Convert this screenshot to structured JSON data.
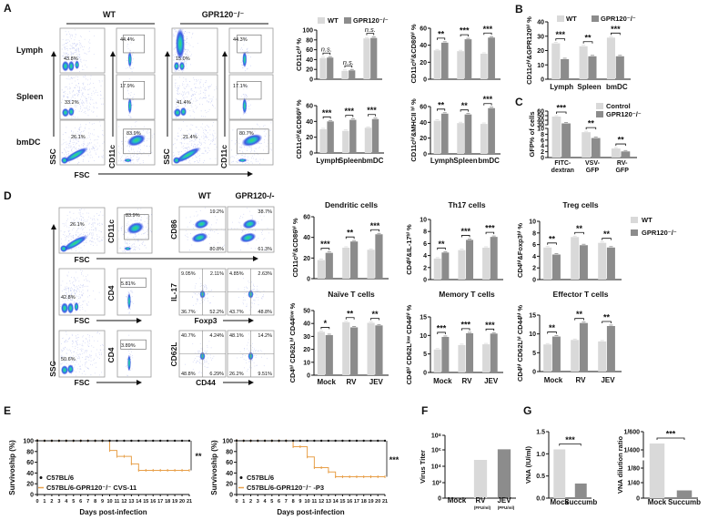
{
  "panels": {
    "A": "A",
    "B": "B",
    "C": "C",
    "D": "D",
    "E": "E",
    "F": "F",
    "G": "G"
  },
  "colors": {
    "wt": "#d9d9d9",
    "ko": "#8c8c8c",
    "survival_wt": "#111111",
    "survival_ko": "#e8a04a",
    "flow_dense": "#3ddc6a",
    "flow_mid": "#1f3fe0"
  },
  "legends": {
    "A": [
      "WT",
      "GPR120⁻/⁻"
    ],
    "B": [
      "WT",
      "GPR120⁻/⁻"
    ],
    "C": [
      "Control",
      "GPR120⁻/⁻"
    ],
    "D": [
      "WT",
      "GPR120⁻/⁻"
    ]
  },
  "flow_A": {
    "header_wt": "WT",
    "header_ko": "GPR120⁻/⁻",
    "rows": [
      "Lymph",
      "Spleen",
      "bmDC"
    ],
    "ssc": "SSC",
    "fsc": "FSC",
    "cd11c": "CD11c",
    "wt_ssc_gates": [
      "43.8%",
      "33.2%",
      "26.1%"
    ],
    "wt_cd11c_gates": [
      "44.4%",
      "17.9%",
      "83.9%"
    ],
    "ko_ssc_gates": [
      "15.0%",
      "41.4%",
      "21.4%"
    ],
    "ko_cd11c_gates": [
      "44.3%",
      "17.1%",
      "80.7%"
    ]
  },
  "flow_D": {
    "header_wt": "WT",
    "header_ko": "GPR120-/-",
    "ssc": "SSC",
    "fsc": "FSC",
    "cd11c": "CD11c",
    "cd86": "CD86",
    "cd4": "CD4",
    "il17": "IL-17",
    "foxp3": "Foxp3",
    "cd62l": "CD62L",
    "cd44": "CD44",
    "row1": {
      "ssc_gate": "26.1%",
      "cd11c_gate": "83.9%",
      "wt": [
        "19.2%",
        "80.8%"
      ],
      "ko": [
        "38.7%",
        "61.3%"
      ]
    },
    "row2": {
      "ssc_gate": "42.8%",
      "cd4_gate": "5.81%",
      "wt": [
        "9.05%",
        "2.11%",
        "36.7%",
        "52.2%"
      ],
      "ko": [
        "4.85%",
        "2.63%",
        "43.7%",
        "48.8%"
      ]
    },
    "row3": {
      "ssc_gate": "50.6%",
      "cd4_gate": "3.89%",
      "wt": [
        "40.7%",
        "4.24%",
        "48.8%",
        "6.29%"
      ],
      "ko": [
        "48.1%",
        "14.2%",
        "26.2%",
        "9.51%"
      ]
    }
  },
  "chart_data": [
    {
      "id": "A-cd11c",
      "type": "bar",
      "ylabel": "CD11cʰⁱ %",
      "ylim": [
        0,
        100
      ],
      "yticks": [
        0,
        20,
        40,
        60,
        80,
        100
      ],
      "ytick_labels": [
        "0",
        "20",
        "40",
        "60",
        "80",
        "100"
      ],
      "series": [
        {
          "name": "WT",
          "values": [
            43,
            17,
            83
          ]
        },
        {
          "name": "GPR120⁻/⁻",
          "values": [
            44,
            18,
            84
          ]
        }
      ],
      "significance": [
        "n.s.",
        "n.s.",
        "n.s."
      ]
    },
    {
      "id": "A-cd80",
      "type": "bar",
      "ylabel": "CD11cʰⁱ&CD80ʰⁱ %",
      "ylim": [
        0,
        60
      ],
      "yticks": [
        0,
        20,
        40,
        60
      ],
      "ytick_labels": [
        "0",
        "20",
        "40",
        "60"
      ],
      "series": [
        {
          "name": "WT",
          "values": [
            34,
            33,
            30
          ]
        },
        {
          "name": "GPR120⁻/⁻",
          "values": [
            43,
            47,
            49
          ]
        }
      ],
      "significance": [
        "**",
        "***",
        "***"
      ]
    },
    {
      "id": "A-cd86",
      "type": "bar",
      "ylabel": "CD11cʰⁱ&CD86ʰⁱ %",
      "ylim": [
        0,
        60
      ],
      "yticks": [
        0,
        20,
        40,
        60
      ],
      "ytick_labels": [
        "0",
        "20",
        "40",
        "60"
      ],
      "categories": [
        "Lymph",
        "Spleen",
        "bmDC"
      ],
      "series": [
        {
          "name": "WT",
          "values": [
            30,
            28,
            32
          ]
        },
        {
          "name": "GPR120⁻/⁻",
          "values": [
            40,
            42,
            43
          ]
        }
      ],
      "significance": [
        "***",
        "***",
        "***"
      ]
    },
    {
      "id": "A-mhcii",
      "type": "bar",
      "ylabel": "CD11cʰⁱ&MHCII ʰⁱ %",
      "ylim": [
        0,
        60
      ],
      "yticks": [
        0,
        20,
        40,
        60
      ],
      "ytick_labels": [
        "0",
        "20",
        "40",
        "60"
      ],
      "categories": [
        "Lymph",
        "Spleen",
        "bmDC"
      ],
      "series": [
        {
          "name": "WT",
          "values": [
            42,
            39,
            38
          ]
        },
        {
          "name": "GPR120⁻/⁻",
          "values": [
            51,
            50,
            58
          ]
        }
      ],
      "significance": [
        "**",
        "**",
        "***"
      ]
    },
    {
      "id": "B",
      "type": "bar",
      "ylabel": "CD11cʰⁱ&GPR120ʰⁱ %",
      "ylim": [
        0,
        40
      ],
      "yticks": [
        0,
        10,
        20,
        30,
        40
      ],
      "ytick_labels": [
        "0",
        "10",
        "20",
        "30",
        "40"
      ],
      "categories": [
        "Lymph",
        "Spleen",
        "bmDC"
      ],
      "series": [
        {
          "name": "WT",
          "values": [
            25,
            23,
            29
          ]
        },
        {
          "name": "GPR120⁻/⁻",
          "values": [
            14,
            16,
            16
          ]
        }
      ],
      "significance": [
        "***",
        "**",
        "***"
      ]
    },
    {
      "id": "C",
      "type": "bar",
      "ylabel": "GFP% of cells",
      "ylim": [
        0,
        60
      ],
      "axis_break": [
        10,
        30
      ],
      "yticks": [
        0,
        2,
        4,
        6,
        8,
        10,
        30,
        40,
        50,
        60
      ],
      "ytick_labels": [
        "0",
        "2",
        "4",
        "6",
        "8",
        "10",
        "30",
        "40",
        "50",
        "60"
      ],
      "categories": [
        [
          "FITC-",
          "dextran"
        ],
        [
          "VSV-",
          "GFP"
        ],
        [
          "RV-",
          "GFP"
        ]
      ],
      "series": [
        {
          "name": "Control",
          "values": [
            48,
            8.7,
            3.1
          ]
        },
        {
          "name": "GPR120⁻/⁻",
          "values": [
            33,
            6.7,
            2.1
          ]
        }
      ],
      "significance": [
        "***",
        "**",
        "**"
      ]
    },
    {
      "id": "D-dc",
      "type": "bar",
      "title": "Dendritic cells",
      "ylabel": "CD11cʰⁱ&CD86ʰⁱ %",
      "ylim": [
        0,
        60
      ],
      "yticks": [
        0,
        20,
        40,
        60
      ],
      "ytick_labels": [
        "0",
        "20",
        "40",
        "60"
      ],
      "series": [
        {
          "name": "WT",
          "values": [
            18,
            30,
            28
          ]
        },
        {
          "name": "GPR120⁻/⁻",
          "values": [
            25,
            36,
            43
          ]
        }
      ],
      "significance": [
        "***",
        "**",
        "***"
      ]
    },
    {
      "id": "D-th17",
      "type": "bar",
      "title": "Th17 cells",
      "ylabel": "CD4ʰⁱ&IL-17ʰⁱ %",
      "ylim": [
        0,
        10
      ],
      "yticks": [
        0,
        2,
        4,
        6,
        8,
        10
      ],
      "ytick_labels": [
        "0",
        "2",
        "4",
        "6",
        "8",
        "10"
      ],
      "series": [
        {
          "name": "WT",
          "values": [
            3.5,
            4.9,
            5.3
          ]
        },
        {
          "name": "GPR120⁻/⁻",
          "values": [
            4.5,
            6.6,
            7.1
          ]
        }
      ],
      "significance": [
        "**",
        "***",
        "***"
      ]
    },
    {
      "id": "D-treg",
      "type": "bar",
      "title": "Treg cells",
      "ylabel": "CD4ʰⁱ&Foxp3ʰⁱ %",
      "ylim": [
        0,
        10
      ],
      "yticks": [
        0,
        2,
        4,
        6,
        8,
        10
      ],
      "ytick_labels": [
        "0",
        "2",
        "4",
        "6",
        "8",
        "10"
      ],
      "series": [
        {
          "name": "WT",
          "values": [
            5.5,
            7.3,
            6.3
          ]
        },
        {
          "name": "GPR120⁻/⁻",
          "values": [
            4.3,
            5.9,
            5.5
          ]
        }
      ],
      "significance": [
        "**",
        "**",
        "**"
      ]
    },
    {
      "id": "D-naive",
      "type": "bar",
      "title": "Naïve T cells",
      "ylabel": "CD4ʰⁱ CD62Lʰⁱ CD44ˡᵒʷ %",
      "ylim": [
        0,
        50
      ],
      "yticks": [
        0,
        10,
        20,
        30,
        40,
        50
      ],
      "ytick_labels": [
        "0",
        "10",
        "20",
        "30",
        "40",
        "50"
      ],
      "categories": [
        "Mock",
        "RV",
        "JEV"
      ],
      "series": [
        {
          "name": "WT",
          "values": [
            33.5,
            41,
            40.5
          ]
        },
        {
          "name": "GPR120⁻/⁻",
          "values": [
            31,
            37,
            38.5
          ]
        }
      ],
      "significance": [
        "*",
        "**",
        "**"
      ]
    },
    {
      "id": "D-memory",
      "type": "bar",
      "title": "Memory T cells",
      "ylabel": "CD4ʰⁱ CD62Lˡᵒʷ CD44ʰⁱ %",
      "ylim": [
        0,
        15
      ],
      "yticks": [
        0,
        5,
        10,
        15
      ],
      "ytick_labels": [
        "0",
        "5",
        "10",
        "15"
      ],
      "categories": [
        "Mock",
        "RV",
        "JEV"
      ],
      "series": [
        {
          "name": "WT",
          "values": [
            6.2,
            7.4,
            7.6
          ]
        },
        {
          "name": "GPR120⁻/⁻",
          "values": [
            9.6,
            10.6,
            10.5
          ]
        }
      ],
      "significance": [
        "***",
        "***",
        "***"
      ]
    },
    {
      "id": "D-effector",
      "type": "bar",
      "title": "Effector T cells",
      "ylabel": "CD4ʰⁱ CD62Lʰⁱ CD44ʰⁱ %",
      "ylim": [
        0,
        15
      ],
      "yticks": [
        0,
        5,
        10,
        15
      ],
      "ytick_labels": [
        "0",
        "5",
        "10",
        "15"
      ],
      "categories": [
        "Mock",
        "RV",
        "JEV"
      ],
      "series": [
        {
          "name": "WT",
          "values": [
            7.2,
            8.4,
            8.0
          ]
        },
        {
          "name": "GPR120⁻/⁻",
          "values": [
            9.3,
            12.9,
            12.1
          ]
        }
      ],
      "significance": [
        "**",
        "**",
        "**"
      ]
    },
    {
      "id": "F",
      "type": "bar",
      "yscale": "log",
      "ylabel": "Virus Titer",
      "yticks": [
        0,
        100,
        10000,
        1000000,
        100000000
      ],
      "ytick_labels": [
        "0",
        "10²",
        "10⁴",
        "10⁶",
        "10⁸"
      ],
      "categories": [
        "Mock",
        "RV",
        "JEV"
      ],
      "category_units": [
        "",
        "(FFU/ml)",
        "(PFU/ml)"
      ],
      "series": [
        {
          "values": [
            0,
            60000,
            1200000
          ]
        }
      ],
      "bar_colors": [
        "#d9d9d9",
        "#d9d9d9",
        "#8c8c8c"
      ]
    },
    {
      "id": "G-vna",
      "type": "bar",
      "ylabel": "VNA (IU/ml)",
      "ylim": [
        0,
        1.5
      ],
      "yticks": [
        0,
        0.5,
        1.0,
        1.5
      ],
      "ytick_labels": [
        "0.0",
        "0.5",
        "1.0",
        "1.5"
      ],
      "categories": [
        "Mock",
        "Succumb"
      ],
      "series": [
        {
          "values": [
            1.1,
            0.33
          ]
        }
      ],
      "bar_colors": [
        "#d9d9d9",
        "#8c8c8c"
      ],
      "significance": "***"
    },
    {
      "id": "G-dilution",
      "type": "bar",
      "ylabel": "VNA dilution ratio",
      "axis_break": [
        80,
        400
      ],
      "yticks": [
        0,
        40,
        80,
        400,
        600
      ],
      "ytick_labels": [
        "0",
        "1/40",
        "1/80",
        "1/400",
        "1/600"
      ],
      "categories": [
        "Mock",
        "Succumb"
      ],
      "series": [
        {
          "values": [
            470,
            20
          ]
        }
      ],
      "bar_colors": [
        "#d9d9d9",
        "#8c8c8c"
      ],
      "significance": "***"
    },
    {
      "id": "E-cvs11",
      "type": "line",
      "ylabel": "Survivoship (%)",
      "xlabel": "Days post-infection",
      "ylim": [
        0,
        100
      ],
      "yticks": [
        0,
        20,
        40,
        60,
        80,
        100
      ],
      "ytick_labels": [
        "0",
        "20",
        "40",
        "60",
        "80",
        "100"
      ],
      "x": [
        0,
        1,
        2,
        3,
        4,
        5,
        6,
        7,
        8,
        9,
        10,
        11,
        12,
        13,
        14,
        15,
        16,
        17,
        18,
        19,
        20,
        21
      ],
      "series": [
        {
          "name": "C57BL/6",
          "values": [
            100,
            100,
            100,
            100,
            100,
            100,
            100,
            100,
            100,
            100,
            100,
            100,
            100,
            100,
            100,
            100,
            100,
            100,
            100,
            100,
            100,
            100
          ]
        },
        {
          "name": "C57BL/6-GPR120⁻/⁻ CVS-11",
          "values": [
            100,
            100,
            100,
            100,
            100,
            100,
            100,
            100,
            100,
            100,
            82,
            71,
            71,
            57,
            45,
            45,
            45,
            45,
            45,
            45,
            45,
            45
          ]
        }
      ],
      "significance": "**"
    },
    {
      "id": "E-p3",
      "type": "line",
      "ylabel": "Survivoship (%)",
      "xlabel": "Days post-infection",
      "ylim": [
        0,
        100
      ],
      "yticks": [
        0,
        20,
        40,
        60,
        80,
        100
      ],
      "ytick_labels": [
        "0",
        "20",
        "40",
        "60",
        "80",
        "100"
      ],
      "x": [
        0,
        1,
        2,
        3,
        4,
        5,
        6,
        7,
        8,
        9,
        10,
        11,
        12,
        13,
        14,
        15,
        16,
        17,
        18,
        19,
        20,
        21
      ],
      "series": [
        {
          "name": "C57BL/6",
          "values": [
            100,
            100,
            100,
            100,
            100,
            100,
            100,
            100,
            100,
            100,
            100,
            100,
            100,
            100,
            100,
            100,
            100,
            100,
            100,
            100,
            100,
            100
          ]
        },
        {
          "name": "C57BL/6-GPR120⁻/⁻ -P3",
          "values": [
            100,
            100,
            100,
            100,
            100,
            100,
            100,
            100,
            89,
            89,
            70,
            50,
            50,
            42,
            33,
            33,
            33,
            33,
            33,
            33,
            33,
            33
          ]
        }
      ],
      "significance": "***"
    }
  ]
}
